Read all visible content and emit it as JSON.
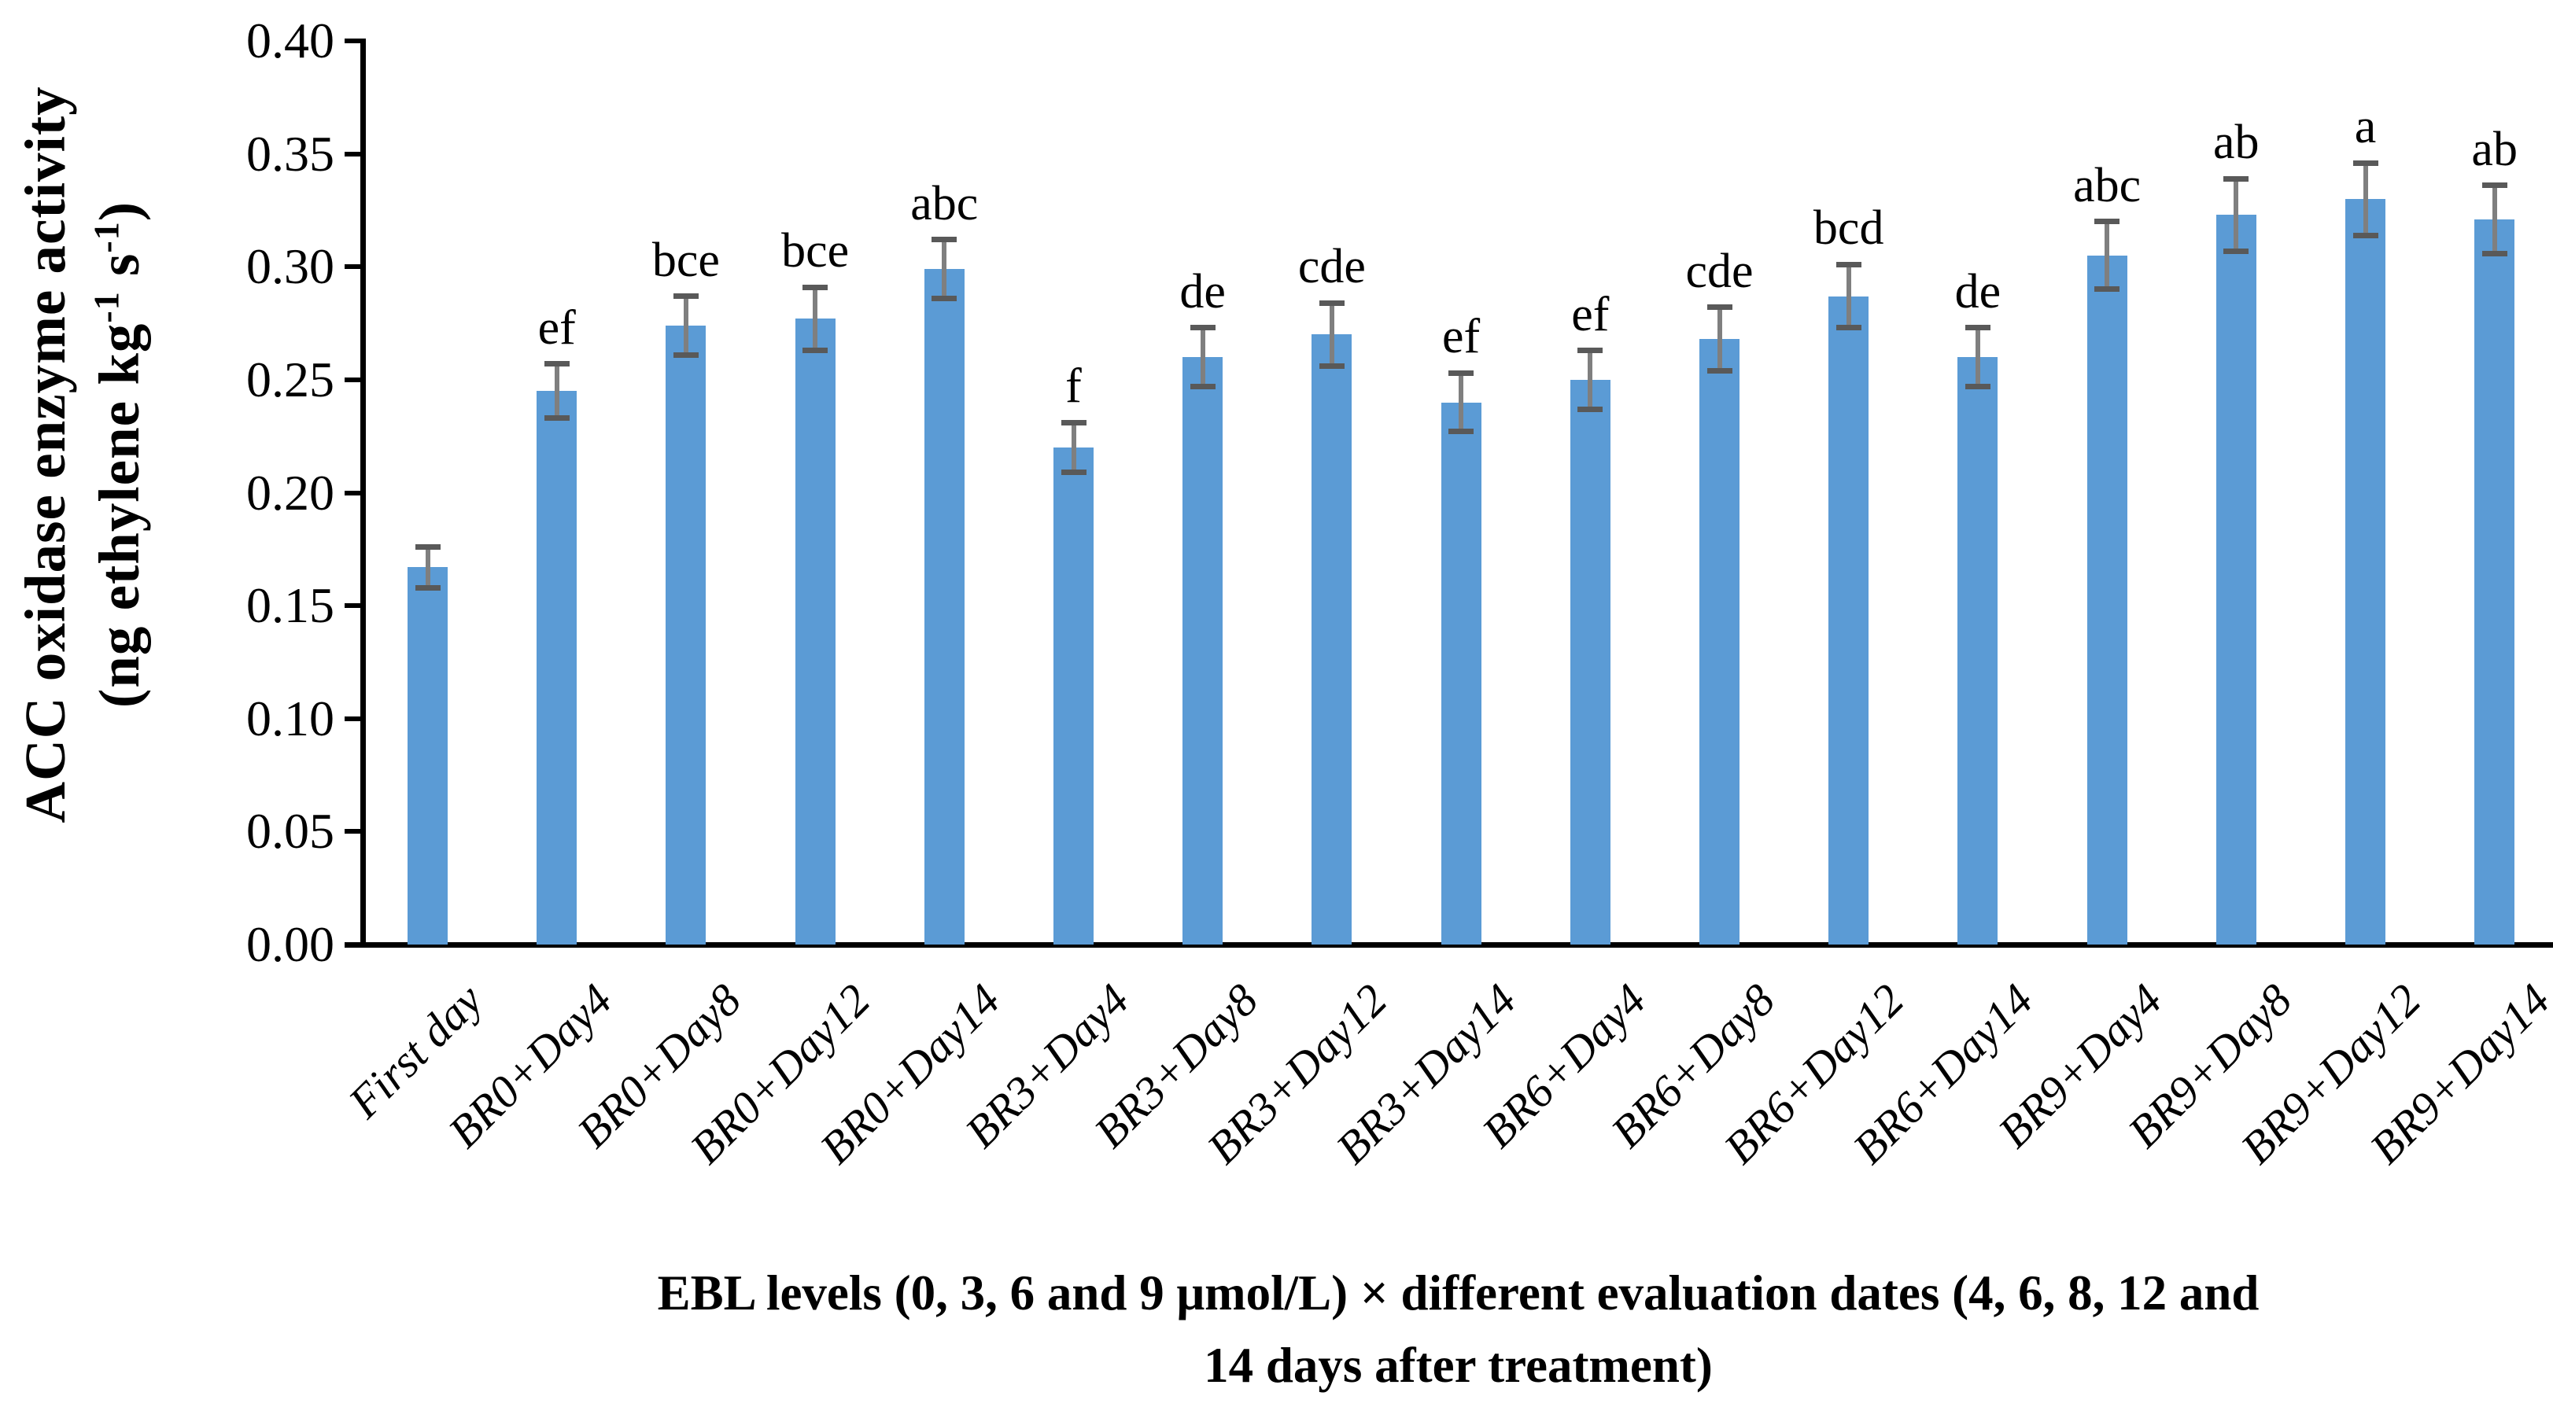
{
  "chart_data": {
    "type": "bar",
    "title": "",
    "ylabel_line1": "ACC oxidase enzyme activity",
    "ylabel_unit_parts": [
      "(ng ethylene kg",
      "-1",
      " s",
      "-1",
      ")"
    ],
    "xlabel": "EBL levels (0, 3, 6 and 9 μmol/L) × different evaluation dates (4, 6, 8, 12 and 14 days after treatment)",
    "caption_line1": "EBL levels (0, 3, 6 and 9 μmol/L) × different evaluation dates (4, 6, 8, 12 and",
    "caption_line2": "14 days after treatment)",
    "ylim": [
      0.0,
      0.4
    ],
    "ytick_step": 0.05,
    "yticks": [
      "0.00",
      "0.05",
      "0.10",
      "0.15",
      "0.20",
      "0.25",
      "0.30",
      "0.35",
      "0.40"
    ],
    "grid": false,
    "legend": "none",
    "bar_color": "#5B9BD5",
    "error_whisker_color": "#7f7f7f",
    "error_cap_color": "#595959",
    "axis_color": "#000000",
    "categories": [
      "First day",
      "BR0+Day4",
      "BR0+Day8",
      "BR0+Day12",
      "BR0+Day14",
      "BR3+Day4",
      "BR3+Day8",
      "BR3+Day12",
      "BR3+Day14",
      "BR6+Day4",
      "BR6+Day8",
      "BR6+Day12",
      "BR6+Day14",
      "BR9+Day4",
      "BR9+Day8",
      "BR9+Day12",
      "BR9+Day14"
    ],
    "values": [
      0.167,
      0.245,
      0.274,
      0.277,
      0.299,
      0.22,
      0.26,
      0.27,
      0.24,
      0.25,
      0.268,
      0.287,
      0.26,
      0.305,
      0.323,
      0.33,
      0.321
    ],
    "errors": [
      0.009,
      0.012,
      0.013,
      0.014,
      0.013,
      0.011,
      0.013,
      0.014,
      0.013,
      0.013,
      0.014,
      0.014,
      0.013,
      0.015,
      0.016,
      0.016,
      0.015
    ],
    "letters": [
      "",
      "ef",
      "bce",
      "bce",
      "abc",
      "f",
      "de",
      "cde",
      "ef",
      "ef",
      "cde",
      "bcd",
      "de",
      "abc",
      "ab",
      "a",
      "ab"
    ]
  }
}
